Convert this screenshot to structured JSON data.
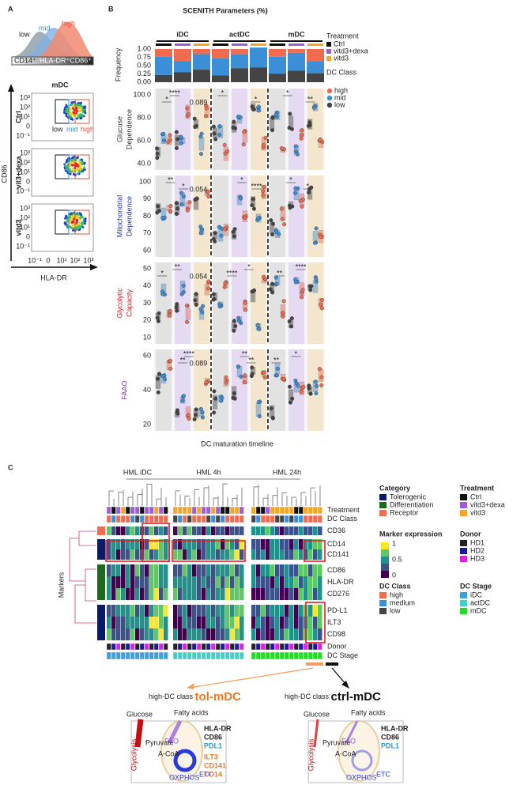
{
  "panel_a": {
    "label": "A",
    "density": {
      "low": "low",
      "mid": "mid",
      "high": "high",
      "left": "CD14⁺",
      "right": "HLA-DR⁺CD86⁺"
    },
    "title": "mDC",
    "rows": [
      "Ctrl",
      "vit3+dexa",
      "vitd3"
    ],
    "y_axis": "CD86",
    "x_axis": "HLA-DR",
    "x_ticks": [
      "10⁻¹",
      "0",
      "10¹",
      "10²",
      "10³"
    ],
    "y_ticks": [
      "10³",
      "10²",
      "10¹",
      "0",
      "10⁻¹"
    ],
    "gate_labels": [
      "low",
      "mid",
      "high"
    ]
  },
  "panel_b": {
    "label": "B",
    "title": "SCENITH Parameters (%)",
    "groups": [
      "iDC",
      "actDC",
      "mDC"
    ],
    "treatment_legend": {
      "title": "Treatment",
      "items": [
        "Ctrl",
        "vitd3+dexa",
        "vitd3"
      ]
    },
    "class_legend": {
      "title": "DC Class",
      "items": [
        "high",
        "mid",
        "low"
      ]
    },
    "frequency": {
      "label": "Frequency",
      "ticks": [
        "1.00",
        "0.75",
        "0.50",
        "0.25",
        "0.00"
      ]
    },
    "facets": [
      {
        "label": [
          "Glucose",
          "Dependence"
        ],
        "ticks": [
          "100.0",
          "80.0",
          "60.0",
          "40.0"
        ],
        "note": "0.089"
      },
      {
        "label": [
          "Mitochondrial",
          "Dependence"
        ],
        "ticks": [
          "100",
          "90",
          "80",
          "70",
          "60"
        ],
        "note": "0.054"
      },
      {
        "label": [
          "Glycolytic",
          "Capacity"
        ],
        "ticks": [
          "50",
          "40",
          "30",
          "20",
          "10"
        ],
        "note": "0.054"
      },
      {
        "label": [
          "FAAO"
        ],
        "ticks": [
          "60",
          "40",
          "20"
        ],
        "note": "0.089"
      }
    ],
    "stars": [
      "*",
      "**",
      "****"
    ],
    "x_axis": "DC maturation timeline"
  },
  "panel_c": {
    "label": "C",
    "headers": [
      "HML iDC",
      "HML 4h",
      "HML 24h"
    ],
    "rows": [
      "Treatment",
      "DC Class",
      "CD36",
      "CD14",
      "CD141",
      "CD86",
      "HLA-DR",
      "CD276",
      "PD-L1",
      "ILT3",
      "CD98",
      "Donor",
      "DC Stage"
    ],
    "markers_label": "Markers",
    "legends": {
      "category": {
        "title": "Category",
        "items": [
          "Tolerogenic",
          "Differentiation",
          "Receptor"
        ]
      },
      "expression": {
        "title": "Marker expression",
        "ticks": [
          "1",
          "0.5",
          "0"
        ]
      },
      "dc_class": {
        "title": "DC Class",
        "items": [
          "high",
          "medium",
          "low"
        ]
      },
      "treatment": {
        "title": "Treatment",
        "items": [
          "Ctrl",
          "vitd3+dexa",
          "vitd3"
        ]
      },
      "donor": {
        "title": "Donor",
        "items": [
          "HD1",
          "HD2",
          "HD3"
        ]
      },
      "dc_stage": {
        "title": "DC Stage",
        "items": [
          "iDC",
          "actDC",
          "mDC"
        ]
      }
    },
    "callouts": [
      {
        "prefix": "high-DC class",
        "name": "tol-mDC"
      },
      {
        "prefix": "high-DC class",
        "name": "ctrl-mDC"
      }
    ],
    "diagram": {
      "glucose": "Glucose",
      "fatty_acids": "Fatty acids",
      "glycolysis": "Glycolysis",
      "pyruvate": "Pyruvate",
      "acoa": "A-CoA",
      "fao": "FAO",
      "tca": "TCA",
      "oxphos": "OXPHOS",
      "etc": "ETC",
      "markers_common": [
        "HLA-DR",
        "CD86",
        "PDL1"
      ],
      "markers_tol": [
        "ILT3",
        "CD141",
        "CD14"
      ]
    }
  }
}
